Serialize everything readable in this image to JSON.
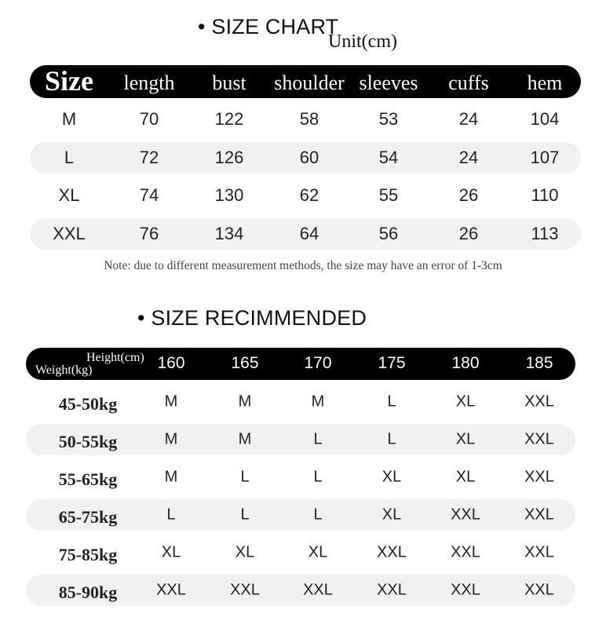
{
  "size_chart": {
    "title": "• SIZE CHART",
    "unit": "Unit(cm)",
    "headers": [
      "Size",
      "length",
      "bust",
      "shoulder",
      "sleeves",
      "cuffs",
      "hem"
    ],
    "rows": [
      [
        "M",
        "70",
        "122",
        "58",
        "53",
        "24",
        "104"
      ],
      [
        "L",
        "72",
        "126",
        "60",
        "54",
        "24",
        "107"
      ],
      [
        "XL",
        "74",
        "130",
        "62",
        "55",
        "26",
        "110"
      ],
      [
        "XXL",
        "76",
        "134",
        "64",
        "56",
        "26",
        "113"
      ]
    ],
    "note": "Note: due to different measurement methods, the size may have an error of 1-3cm"
  },
  "size_recommended": {
    "title": "• SIZE RECIMMENDED",
    "height_label": "Height(cm)",
    "weight_label": "Weight(kg)",
    "heights": [
      "160",
      "165",
      "170",
      "175",
      "180",
      "185"
    ],
    "rows": [
      {
        "weight": "45-50kg",
        "sizes": [
          "M",
          "M",
          "M",
          "L",
          "XL",
          "XXL"
        ]
      },
      {
        "weight": "50-55kg",
        "sizes": [
          "M",
          "M",
          "L",
          "L",
          "XL",
          "XXL"
        ]
      },
      {
        "weight": "55-65kg",
        "sizes": [
          "M",
          "L",
          "L",
          "XL",
          "XL",
          "XXL"
        ]
      },
      {
        "weight": "65-75kg",
        "sizes": [
          "L",
          "L",
          "L",
          "XL",
          "XXL",
          "XXL"
        ]
      },
      {
        "weight": "75-85kg",
        "sizes": [
          "XL",
          "XL",
          "XL",
          "XXL",
          "XXL",
          "XXL"
        ]
      },
      {
        "weight": "85-90kg",
        "sizes": [
          "XXL",
          "XXL",
          "XXL",
          "XXL",
          "XXL",
          "XXL"
        ]
      }
    ]
  }
}
